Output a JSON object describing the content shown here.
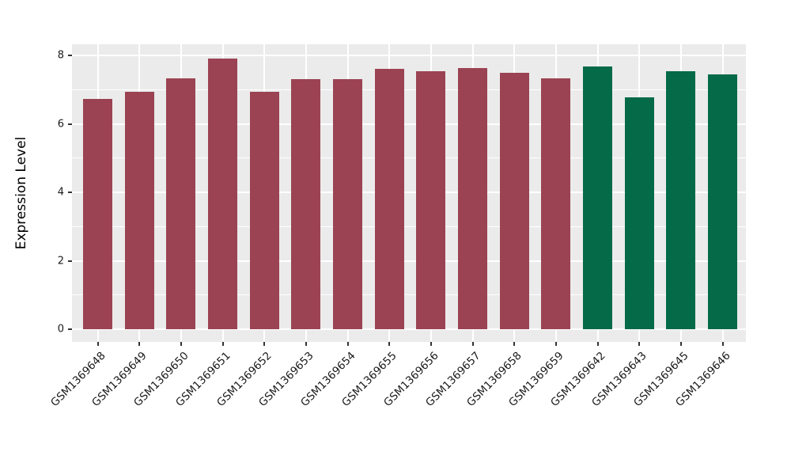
{
  "chart_data": {
    "type": "bar",
    "title": "",
    "xlabel": "",
    "ylabel": "Expression Level",
    "categories": [
      "GSM1369648",
      "GSM1369649",
      "GSM1369650",
      "GSM1369651",
      "GSM1369652",
      "GSM1369653",
      "GSM1369654",
      "GSM1369655",
      "GSM1369656",
      "GSM1369657",
      "GSM1369658",
      "GSM1369659",
      "GSM1369642",
      "GSM1369643",
      "GSM1369645",
      "GSM1369646"
    ],
    "values": [
      6.72,
      6.93,
      7.32,
      7.9,
      6.93,
      7.3,
      7.3,
      7.6,
      7.53,
      7.63,
      7.5,
      7.32,
      7.68,
      6.77,
      7.53,
      7.44
    ],
    "bar_colors": [
      "#9B4353",
      "#9B4353",
      "#9B4353",
      "#9B4353",
      "#9B4353",
      "#9B4353",
      "#9B4353",
      "#9B4353",
      "#9B4353",
      "#9B4353",
      "#9B4353",
      "#9B4353",
      "#046A47",
      "#046A47",
      "#046A47",
      "#046A47"
    ],
    "yticks": [
      0,
      2,
      4,
      6,
      8
    ],
    "ylim": [
      0,
      8.3
    ],
    "grid": "on",
    "legend_position": "none",
    "panel_bg": "#EBEBEB",
    "grid_color": "#FFFFFF",
    "tick_color": "#333333",
    "text_color": "#1a1a1a"
  }
}
